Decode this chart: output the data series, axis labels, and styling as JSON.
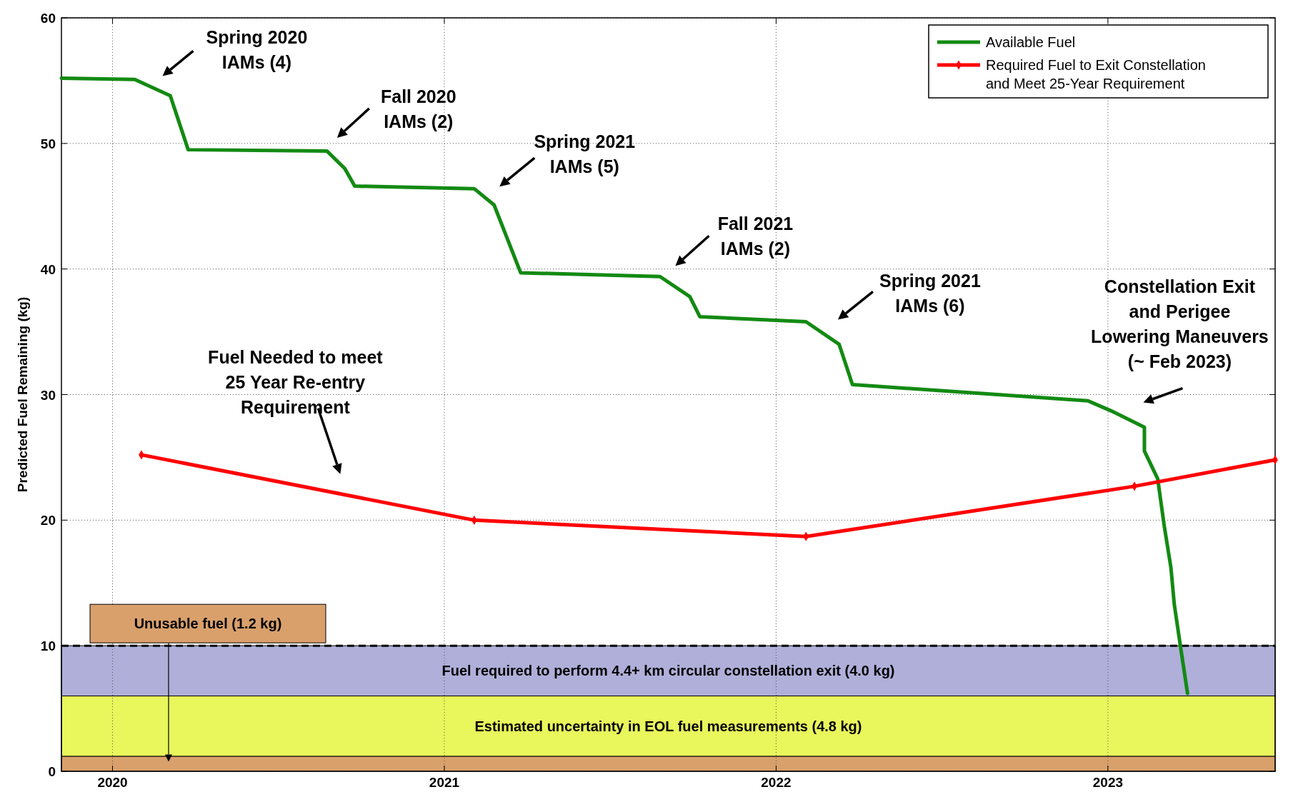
{
  "chart_data": {
    "type": "line",
    "ylabel": "Predicted Fuel Remaining (kg)",
    "xlim": [
      2019.846,
      2023.504
    ],
    "xticks": [
      2020,
      2021,
      2022,
      2023
    ],
    "ylim": [
      0,
      60
    ],
    "yticks": [
      0,
      10,
      20,
      30,
      40,
      50,
      60
    ],
    "grid": true,
    "legend": "top right",
    "series": [
      {
        "name": "Available Fuel",
        "color": "#138a13",
        "marker": "none",
        "x": [
          2019.846,
          2020.067,
          2020.174,
          2020.228,
          2020.646,
          2020.7,
          2020.73,
          2021.09,
          2021.15,
          2021.23,
          2021.65,
          2021.74,
          2021.77,
          2022.09,
          2022.19,
          2022.23,
          2022.94,
          2023.01,
          2023.11,
          2023.11,
          2023.15,
          2023.17,
          2023.19,
          2023.2,
          2023.22,
          2023.24
        ],
        "values": [
          55.2,
          55.1,
          53.8,
          49.5,
          49.4,
          48.0,
          46.6,
          46.4,
          45.1,
          39.7,
          39.4,
          37.8,
          36.2,
          35.8,
          34.0,
          30.8,
          29.5,
          28.7,
          27.4,
          25.5,
          23.3,
          19.5,
          16.2,
          13.3,
          9.7,
          6.2
        ]
      },
      {
        "name": "Required Fuel to Exit Constellation\nand Meet 25-Year Requirement",
        "color": "#ff0000",
        "marker": "diamond",
        "x": [
          2020.087,
          2021.09,
          2022.09,
          2023.08,
          2023.504
        ],
        "values": [
          25.2,
          20.0,
          18.7,
          22.7,
          24.8
        ]
      }
    ],
    "ref_lines": [
      {
        "axis": "y",
        "value": 10,
        "color": "#000000",
        "line_style": "dashed"
      }
    ],
    "bands": [
      {
        "axis": "y",
        "from": 0,
        "to": 1.2,
        "label": "Unusable fuel (1.2 kg)",
        "color": "#d9a06b"
      },
      {
        "axis": "y",
        "from": 1.2,
        "to": 6,
        "label": "Estimated uncertainty in EOL fuel measurements (4.8 kg)",
        "color": "#e9f65c"
      },
      {
        "axis": "y",
        "from": 6,
        "to": 10,
        "label": "Fuel required to perform 4.4+ km circular constellation exit (4.0 kg)",
        "color": "#afafd9"
      }
    ],
    "annotations": [
      "Spring 2020\nIAMs (4)",
      "Fall 2020\nIAMs (2)",
      "Spring 2021\nIAMs (5)",
      "Fall 2021\nIAMs (2)",
      "Spring 2021\nIAMs (6)",
      "Constellation Exit\nand Perigee\nLowering Maneuvers\n(~ Feb 2023)",
      "Fuel Needed to meet\n25 Year Re-entry\nRequirement"
    ]
  }
}
